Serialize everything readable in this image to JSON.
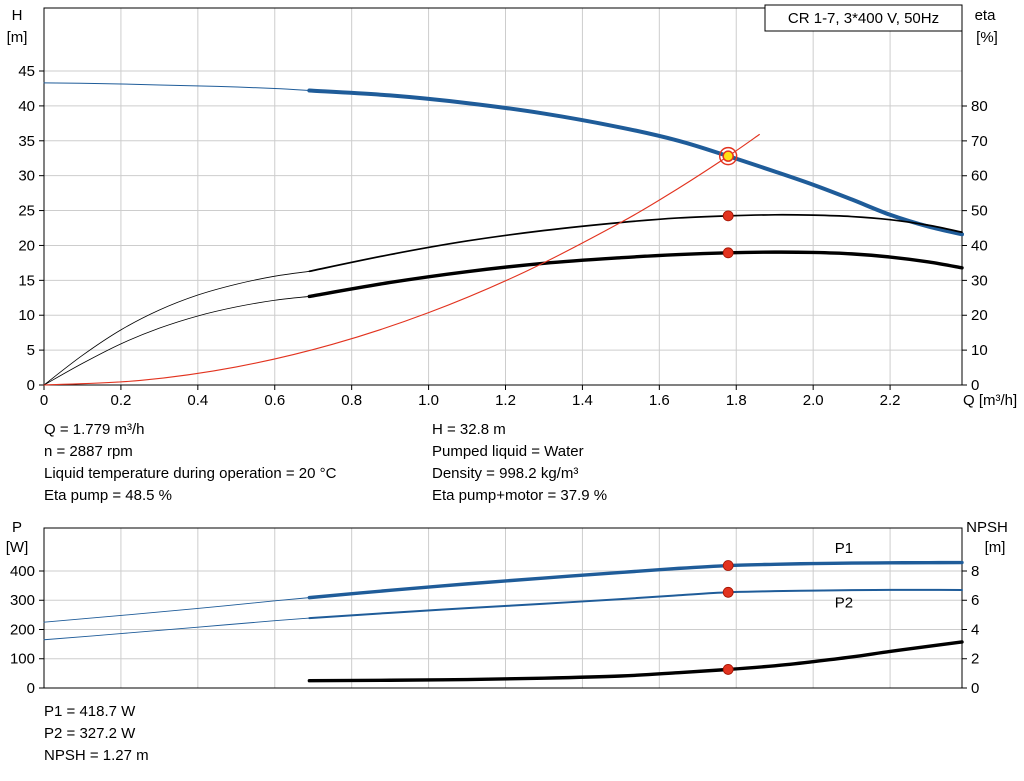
{
  "pump_model_box": "CR 1-7, 3*400 V, 50Hz",
  "colors": {
    "curve_blue": "#1f5c99",
    "curve_black": "#000000",
    "curve_red": "#e2331f",
    "marker_red": "#e2331f",
    "marker_red_edge": "#a31200",
    "marker_yellow": "#ffe014"
  },
  "readouts": {
    "top_left": [
      "Q = 1.779 m³/h",
      "n = 2887 rpm",
      "Liquid temperature during operation = 20 °C",
      "Eta pump = 48.5 %"
    ],
    "top_right": [
      "H = 32.8 m",
      "Pumped liquid = Water",
      "Density = 998.2 kg/m³",
      "Eta pump+motor = 37.9 %"
    ],
    "bottom": [
      "P1 = 418.7 W",
      "P2 = 327.2 W",
      "NPSH = 1.27 m"
    ]
  },
  "chart_data": [
    {
      "type": "line",
      "name": "qh-eta-chart",
      "title": "CR 1-7, 3*400 V, 50Hz",
      "x_axis": {
        "label": "Q [m³/h]",
        "min": 0,
        "max": 2.387,
        "ticks": [
          {
            "v": 0,
            "t": "0"
          },
          {
            "v": 0.2,
            "t": "0.2"
          },
          {
            "v": 0.4,
            "t": "0.4"
          },
          {
            "v": 0.6,
            "t": "0.6"
          },
          {
            "v": 0.8,
            "t": "0.8"
          },
          {
            "v": 1.0,
            "t": "1.0"
          },
          {
            "v": 1.2,
            "t": "1.2"
          },
          {
            "v": 1.4,
            "t": "1.4"
          },
          {
            "v": 1.6,
            "t": "1.6"
          },
          {
            "v": 1.8,
            "t": "1.8"
          },
          {
            "v": 2.0,
            "t": "2.0"
          },
          {
            "v": 2.2,
            "t": "2.2"
          }
        ]
      },
      "left_axis": {
        "title_lines": [
          "H",
          "[m]"
        ],
        "min": 0,
        "max": 54.03,
        "ticks": [
          0,
          5,
          10,
          15,
          20,
          25,
          30,
          35,
          40,
          45
        ]
      },
      "right_axis": {
        "title_lines": [
          "eta",
          "[%]"
        ],
        "min": 0,
        "max": 108.1,
        "ticks": [
          0,
          10,
          20,
          30,
          40,
          50,
          60,
          70,
          80
        ]
      },
      "series": [
        {
          "name": "head-curve-lead",
          "axis": "left",
          "color": "#1f5c99",
          "width": 1,
          "x": [
            0,
            0.15,
            0.3,
            0.45,
            0.6,
            0.69
          ],
          "v": [
            43.3,
            43.2,
            43.0,
            42.8,
            42.5,
            42.2
          ]
        },
        {
          "name": "head-curve",
          "axis": "left",
          "color": "#1f5c99",
          "width": 4,
          "x": [
            0.69,
            0.9,
            1.1,
            1.3,
            1.5,
            1.65,
            1.779,
            1.9,
            2.0,
            2.1,
            2.2,
            2.3,
            2.387
          ],
          "v": [
            42.2,
            41.5,
            40.4,
            38.9,
            36.9,
            35.0,
            32.8,
            30.6,
            28.7,
            26.6,
            24.4,
            22.7,
            21.6
          ]
        },
        {
          "name": "eta-pump-lead",
          "axis": "right",
          "color": "#000000",
          "width": 0.8,
          "x": [
            0,
            0.1,
            0.2,
            0.3,
            0.4,
            0.5,
            0.6,
            0.69
          ],
          "v": [
            0,
            8.5,
            15.8,
            21.5,
            25.8,
            28.9,
            31.2,
            32.6
          ]
        },
        {
          "name": "eta-pump-curve",
          "axis": "right",
          "color": "#000000",
          "width": 1.7,
          "x": [
            0.69,
            0.9,
            1.1,
            1.3,
            1.5,
            1.65,
            1.779,
            1.9,
            2.0,
            2.1,
            2.2,
            2.3,
            2.387
          ],
          "v": [
            32.6,
            37.4,
            41.3,
            44.3,
            46.6,
            47.9,
            48.5,
            48.8,
            48.7,
            48.3,
            47.4,
            45.8,
            43.8
          ]
        },
        {
          "name": "eta-pump-motor-lead",
          "axis": "right",
          "color": "#000000",
          "width": 0.8,
          "x": [
            0,
            0.1,
            0.2,
            0.3,
            0.4,
            0.5,
            0.6,
            0.69
          ],
          "v": [
            0,
            6.2,
            11.8,
            16.3,
            19.8,
            22.4,
            24.3,
            25.4
          ]
        },
        {
          "name": "eta-pump-motor-curve",
          "axis": "right",
          "color": "#000000",
          "width": 3.4,
          "x": [
            0.69,
            0.9,
            1.1,
            1.3,
            1.5,
            1.65,
            1.779,
            1.9,
            2.0,
            2.1,
            2.2,
            2.3,
            2.387
          ],
          "v": [
            25.4,
            29.4,
            32.5,
            34.9,
            36.5,
            37.4,
            37.9,
            38.1,
            38.0,
            37.6,
            36.7,
            35.3,
            33.6
          ]
        },
        {
          "name": "system-curve",
          "axis": "left",
          "color": "#e2331f",
          "width": 1.1,
          "x": [
            0,
            0.25,
            0.5,
            0.75,
            1.0,
            1.25,
            1.5,
            1.65,
            1.779,
            1.86
          ],
          "v": [
            0,
            0.65,
            2.59,
            5.83,
            10.37,
            16.2,
            23.3,
            28.2,
            32.8,
            35.9
          ]
        }
      ],
      "markers": [
        {
          "name": "duty-point",
          "style": "duty",
          "q": 1.779,
          "v": 32.8,
          "axis": "left"
        },
        {
          "name": "eta-pump-point",
          "style": "dot",
          "q": 1.779,
          "v": 48.5,
          "axis": "right"
        },
        {
          "name": "eta-pump-motor-point",
          "style": "dot",
          "q": 1.779,
          "v": 37.9,
          "axis": "right"
        }
      ],
      "series_labels": []
    },
    {
      "type": "line",
      "name": "power-npsh-chart",
      "x_axis": {
        "label": "",
        "min": 0,
        "max": 2.387,
        "ticks": [
          {
            "v": 0,
            "t": "0"
          },
          {
            "v": 0.2,
            "t": "0.2"
          },
          {
            "v": 0.4,
            "t": "0.4"
          },
          {
            "v": 0.6,
            "t": "0.6"
          },
          {
            "v": 0.8,
            "t": "0.8"
          },
          {
            "v": 1.0,
            "t": "1.0"
          },
          {
            "v": 1.2,
            "t": "1.2"
          },
          {
            "v": 1.4,
            "t": "1.4"
          },
          {
            "v": 1.6,
            "t": "1.6"
          },
          {
            "v": 1.8,
            "t": "1.8"
          },
          {
            "v": 2.0,
            "t": "2.0"
          },
          {
            "v": 2.2,
            "t": "2.2"
          }
        ]
      },
      "left_axis": {
        "title_lines": [
          "P",
          "[W]"
        ],
        "min": 0,
        "max": 547,
        "ticks": [
          0,
          100,
          200,
          300,
          400
        ]
      },
      "right_axis": {
        "title_lines": [
          "NPSH",
          "[m]"
        ],
        "min": 0,
        "max": 10.94,
        "ticks": [
          0,
          2,
          4,
          6,
          8
        ]
      },
      "series": [
        {
          "name": "p1-curve-lead",
          "axis": "left",
          "color": "#1f5c99",
          "width": 0.9,
          "x": [
            0,
            0.2,
            0.4,
            0.6,
            0.69
          ],
          "v": [
            225,
            248,
            272,
            298,
            309
          ]
        },
        {
          "name": "p1-curve",
          "axis": "left",
          "color": "#1f5c99",
          "width": 3.4,
          "x": [
            0.69,
            0.9,
            1.1,
            1.3,
            1.5,
            1.65,
            1.779,
            1.9,
            2.0,
            2.1,
            2.2,
            2.3,
            2.387
          ],
          "v": [
            309,
            334,
            356,
            376,
            395,
            409,
            418.7,
            423,
            425.5,
            427,
            428,
            428.5,
            429
          ]
        },
        {
          "name": "p2-curve-lead",
          "axis": "left",
          "color": "#1f5c99",
          "width": 0.9,
          "x": [
            0,
            0.2,
            0.4,
            0.6,
            0.69
          ],
          "v": [
            165,
            186,
            208,
            230,
            239
          ]
        },
        {
          "name": "p2-curve",
          "axis": "left",
          "color": "#1f5c99",
          "width": 2,
          "x": [
            0.69,
            0.9,
            1.1,
            1.3,
            1.5,
            1.65,
            1.779,
            1.9,
            2.0,
            2.1,
            2.2,
            2.3,
            2.387
          ],
          "v": [
            239,
            257,
            273,
            288,
            304,
            317,
            327.2,
            331,
            333,
            334.5,
            335.5,
            335.5,
            335
          ]
        },
        {
          "name": "npsh-curve",
          "axis": "right",
          "color": "#000000",
          "width": 3.4,
          "x": [
            0.69,
            0.9,
            1.1,
            1.3,
            1.5,
            1.65,
            1.779,
            1.9,
            2.0,
            2.1,
            2.2,
            2.3,
            2.387
          ],
          "v": [
            0.5,
            0.53,
            0.58,
            0.67,
            0.82,
            1.05,
            1.27,
            1.52,
            1.8,
            2.12,
            2.5,
            2.85,
            3.15
          ]
        }
      ],
      "markers": [
        {
          "name": "p1-point",
          "style": "dot",
          "q": 1.779,
          "v": 418.7,
          "axis": "left"
        },
        {
          "name": "p2-point",
          "style": "dot",
          "q": 1.779,
          "v": 327.2,
          "axis": "left"
        },
        {
          "name": "npsh-point",
          "style": "dot",
          "q": 1.779,
          "v": 1.27,
          "axis": "right"
        }
      ],
      "series_labels": [
        {
          "text": "P1",
          "q": 2.08,
          "v": 462,
          "axis": "left",
          "color": "#1f5c99"
        },
        {
          "text": "P2",
          "q": 2.08,
          "v": 276,
          "axis": "left",
          "color": "#1f5c99"
        }
      ]
    }
  ]
}
